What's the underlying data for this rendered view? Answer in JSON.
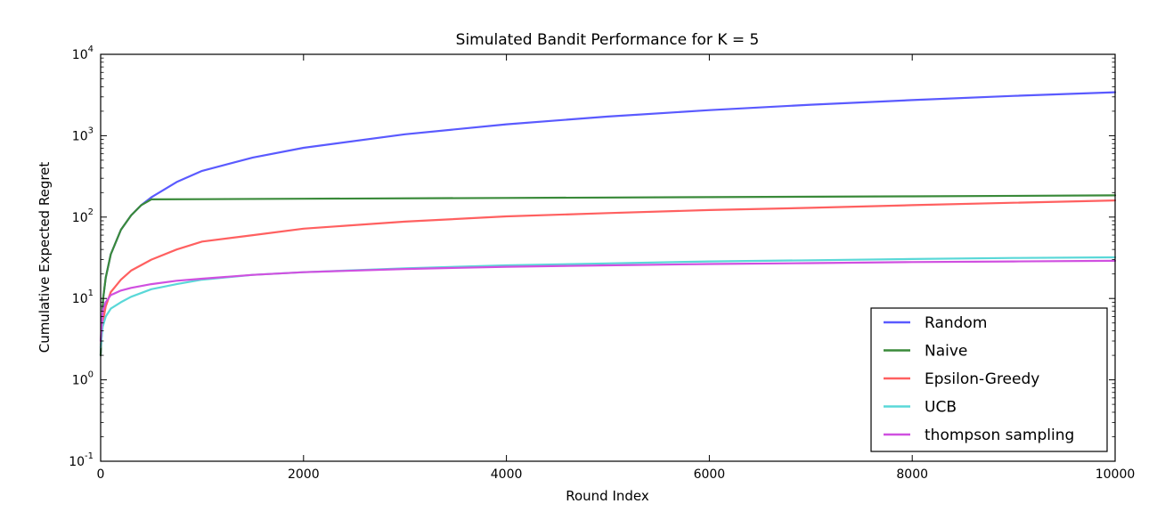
{
  "chart_data": {
    "type": "line",
    "title": "Simulated Bandit Performance for K = 5",
    "xlabel": "Round Index",
    "ylabel": "Cumulative Expected Regret",
    "xlim": [
      0,
      10000
    ],
    "ylim": [
      0.1,
      10000
    ],
    "yscale": "log",
    "x_ticks": [
      "0",
      "2000",
      "4000",
      "6000",
      "8000",
      "10000"
    ],
    "y_ticks": [
      {
        "base": "10",
        "exp": "-1"
      },
      {
        "base": "10",
        "exp": "0"
      },
      {
        "base": "10",
        "exp": "1"
      },
      {
        "base": "10",
        "exp": "2"
      },
      {
        "base": "10",
        "exp": "3"
      },
      {
        "base": "10",
        "exp": "4"
      }
    ],
    "grid": false,
    "legend_position": "lower-right",
    "series": [
      {
        "name": "Random",
        "color": "#5a5aff",
        "points": [
          [
            0,
            2
          ],
          [
            25,
            10
          ],
          [
            50,
            18
          ],
          [
            100,
            35
          ],
          [
            200,
            70
          ],
          [
            300,
            105
          ],
          [
            400,
            140
          ],
          [
            500,
            175
          ],
          [
            750,
            270
          ],
          [
            1000,
            370
          ],
          [
            1500,
            540
          ],
          [
            2000,
            710
          ],
          [
            3000,
            1040
          ],
          [
            4000,
            1380
          ],
          [
            5000,
            1720
          ],
          [
            6000,
            2060
          ],
          [
            7000,
            2400
          ],
          [
            8000,
            2740
          ],
          [
            9000,
            3080
          ],
          [
            10000,
            3420
          ]
        ]
      },
      {
        "name": "Naive",
        "color": "#3a8a3a",
        "points": [
          [
            0,
            2
          ],
          [
            25,
            10
          ],
          [
            50,
            18
          ],
          [
            100,
            35
          ],
          [
            200,
            70
          ],
          [
            300,
            105
          ],
          [
            400,
            140
          ],
          [
            500,
            165
          ],
          [
            1000,
            166
          ],
          [
            2000,
            168
          ],
          [
            4000,
            172
          ],
          [
            6000,
            176
          ],
          [
            8000,
            180
          ],
          [
            10000,
            185
          ]
        ]
      },
      {
        "name": "Epsilon-Greedy",
        "color": "#ff6060",
        "points": [
          [
            0,
            2.5
          ],
          [
            20,
            5
          ],
          [
            50,
            8
          ],
          [
            100,
            12
          ],
          [
            200,
            17
          ],
          [
            300,
            22
          ],
          [
            500,
            30
          ],
          [
            750,
            40
          ],
          [
            1000,
            50
          ],
          [
            1500,
            60
          ],
          [
            2000,
            72
          ],
          [
            3000,
            88
          ],
          [
            4000,
            102
          ],
          [
            5000,
            112
          ],
          [
            6000,
            122
          ],
          [
            7000,
            130
          ],
          [
            8000,
            140
          ],
          [
            9000,
            150
          ],
          [
            10000,
            160
          ]
        ]
      },
      {
        "name": "UCB",
        "color": "#5ad8d8",
        "points": [
          [
            0,
            2.5
          ],
          [
            20,
            4.5
          ],
          [
            50,
            6
          ],
          [
            100,
            7.5
          ],
          [
            200,
            9
          ],
          [
            300,
            10.5
          ],
          [
            500,
            13
          ],
          [
            750,
            15
          ],
          [
            1000,
            17
          ],
          [
            1500,
            19.5
          ],
          [
            2000,
            21
          ],
          [
            3000,
            23.5
          ],
          [
            4000,
            25.5
          ],
          [
            5000,
            27
          ],
          [
            6000,
            28.5
          ],
          [
            7000,
            29.5
          ],
          [
            8000,
            30.5
          ],
          [
            9000,
            31.5
          ],
          [
            10000,
            32
          ]
        ]
      },
      {
        "name": "thompson sampling",
        "color": "#d050e0",
        "points": [
          [
            0,
            3
          ],
          [
            20,
            7
          ],
          [
            50,
            9
          ],
          [
            100,
            11
          ],
          [
            200,
            12.5
          ],
          [
            300,
            13.5
          ],
          [
            500,
            15
          ],
          [
            750,
            16.5
          ],
          [
            1000,
            17.5
          ],
          [
            1500,
            19.5
          ],
          [
            2000,
            21
          ],
          [
            3000,
            23
          ],
          [
            4000,
            24.5
          ],
          [
            5000,
            25.5
          ],
          [
            6000,
            26.5
          ],
          [
            7000,
            27.2
          ],
          [
            8000,
            28
          ],
          [
            9000,
            28.5
          ],
          [
            10000,
            29
          ]
        ]
      }
    ]
  }
}
